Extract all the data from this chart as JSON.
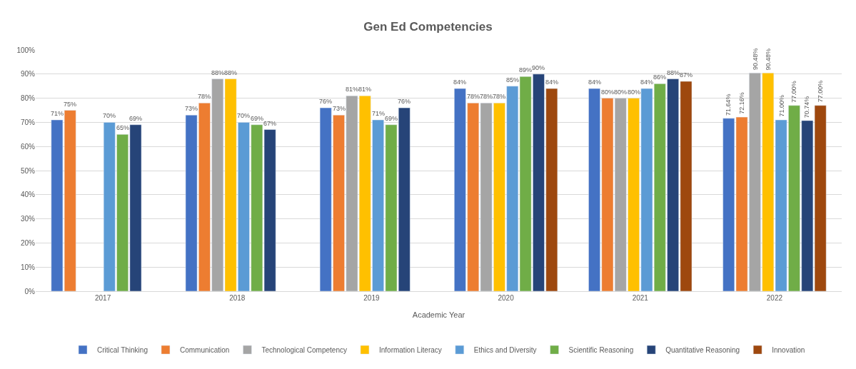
{
  "chart_data": {
    "type": "bar",
    "title": "Gen Ed Competencies",
    "xlabel": "Academic Year",
    "categories": [
      "2017",
      "2018",
      "2019",
      "2020",
      "2021",
      "2022"
    ],
    "series": [
      {
        "name": "Critical Thinking",
        "color": "#4472c4",
        "values": [
          71,
          73,
          76,
          84,
          84,
          71.64
        ],
        "value_labels": [
          "71%",
          "73%",
          "76%",
          "84%",
          "84%",
          "71.64%"
        ]
      },
      {
        "name": "Communication",
        "color": "#ed7d31",
        "values": [
          75,
          78,
          73,
          78,
          80,
          72.16
        ],
        "value_labels": [
          "75%",
          "78%",
          "73%",
          "78%",
          "80%",
          "72.16%"
        ]
      },
      {
        "name": "Technological Competency",
        "color": "#a5a5a5",
        "values": [
          null,
          88,
          81,
          78,
          80,
          90.48
        ],
        "value_labels": [
          null,
          "88%",
          "81%",
          "78%",
          "80%",
          "90.48%"
        ]
      },
      {
        "name": "Information Literacy",
        "color": "#ffc000",
        "values": [
          null,
          88,
          81,
          78,
          80,
          90.48
        ],
        "value_labels": [
          null,
          "88%",
          "81%",
          "78%",
          "80%",
          "90.48%"
        ]
      },
      {
        "name": "Ethics and Diversity",
        "color": "#5b9bd5",
        "values": [
          70,
          70,
          71,
          85,
          84,
          71.0
        ],
        "value_labels": [
          "70%",
          "70%",
          "71%",
          "85%",
          "84%",
          "71.00%"
        ]
      },
      {
        "name": "Scientific Reasoning",
        "color": "#70ad47",
        "values": [
          65,
          69,
          69,
          89,
          86,
          77.0
        ],
        "value_labels": [
          "65%",
          "69%",
          "69%",
          "89%",
          "86%",
          "77.00%"
        ]
      },
      {
        "name": "Quantitative Reasoning",
        "color": "#264478",
        "values": [
          69,
          67,
          76,
          90,
          88,
          70.74
        ],
        "value_labels": [
          "69%",
          "67%",
          "76%",
          "90%",
          "88%",
          "70.74%"
        ]
      },
      {
        "name": "Innovation",
        "color": "#9e480e",
        "values": [
          null,
          null,
          null,
          84,
          87,
          77.0
        ],
        "value_labels": [
          null,
          null,
          null,
          "84%",
          "87%",
          "77.00%"
        ]
      }
    ],
    "ylim": [
      0,
      100
    ],
    "yticks": [
      {
        "value": 0,
        "label": "0%"
      },
      {
        "value": 10,
        "label": "10%"
      },
      {
        "value": 20,
        "label": "20%"
      },
      {
        "value": 30,
        "label": "30%"
      },
      {
        "value": 40,
        "label": "40%"
      },
      {
        "value": 50,
        "label": "50%"
      },
      {
        "value": 60,
        "label": "60%"
      },
      {
        "value": 70,
        "label": "70%"
      },
      {
        "value": 80,
        "label": "80%"
      },
      {
        "value": 90,
        "label": "90%"
      },
      {
        "value": 100,
        "label": "100%"
      }
    ],
    "grid": "y",
    "legend": "bottom"
  }
}
